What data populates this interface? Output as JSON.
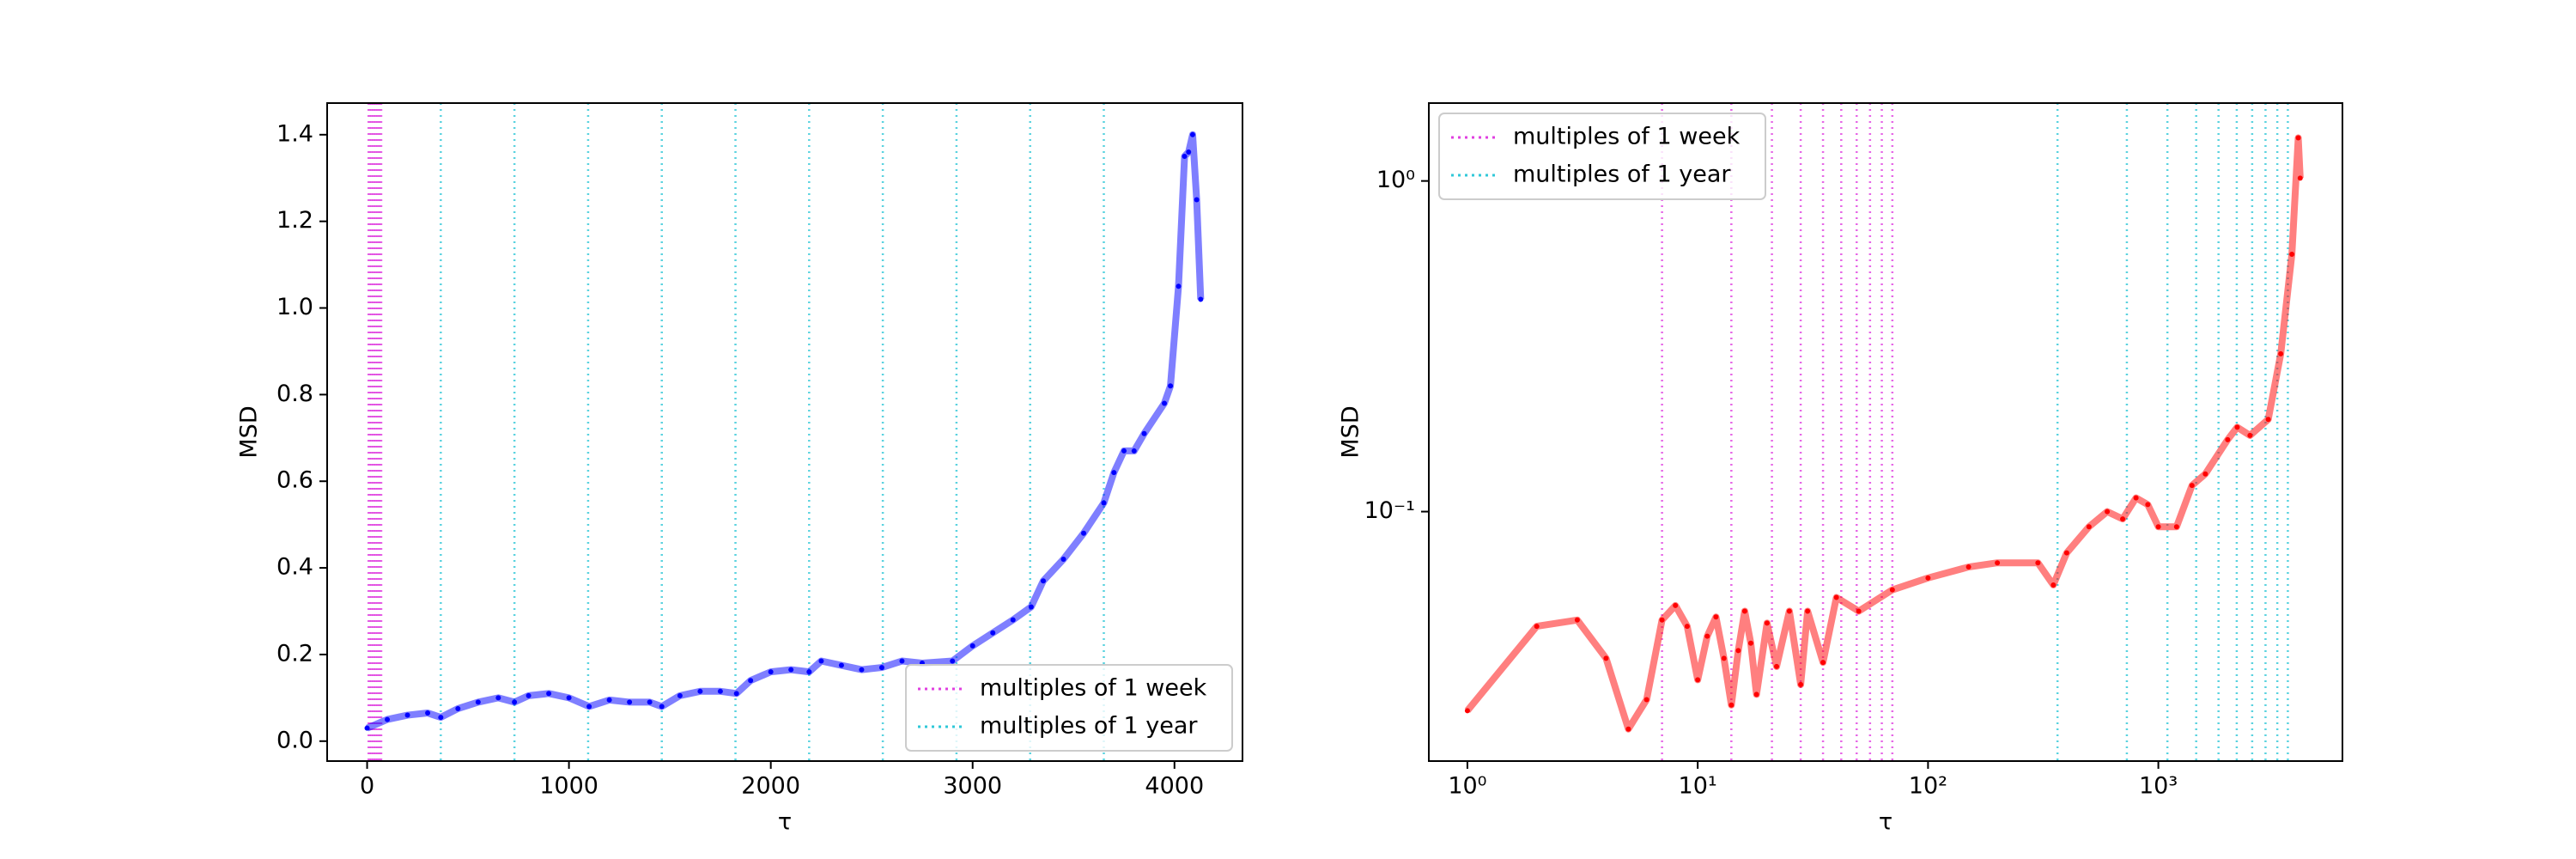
{
  "chart_data": [
    {
      "type": "line",
      "xlabel": "τ",
      "ylabel": "MSD",
      "xscale": "linear",
      "yscale": "linear",
      "xlim": [
        -198,
        4337
      ],
      "ylim": [
        -0.046,
        1.473
      ],
      "xticks": [
        0,
        1000,
        2000,
        3000,
        4000
      ],
      "yticks": [
        {
          "value": 0,
          "label": "0.0"
        },
        0.2,
        0.4,
        0.6,
        0.8,
        {
          "value": 1,
          "label": "1.0"
        },
        1.2,
        1.4
      ],
      "legend": "lower right",
      "series": [
        {
          "name": "MSD",
          "color": "#0000ff",
          "x": [
            0,
            100,
            200,
            300,
            365,
            450,
            550,
            650,
            730,
            800,
            900,
            1000,
            1100,
            1200,
            1300,
            1400,
            1460,
            1550,
            1650,
            1750,
            1830,
            1900,
            2000,
            2100,
            2190,
            2250,
            2350,
            2450,
            2550,
            2650,
            2750,
            2900,
            3000,
            3100,
            3200,
            3290,
            3350,
            3450,
            3550,
            3650,
            3700,
            3750,
            3800,
            3850,
            3950,
            3980,
            4020,
            4050,
            4070,
            4090,
            4110,
            4130
          ],
          "values": [
            0.03,
            0.05,
            0.06,
            0.065,
            0.055,
            0.075,
            0.09,
            0.1,
            0.09,
            0.105,
            0.11,
            0.1,
            0.08,
            0.095,
            0.09,
            0.09,
            0.08,
            0.105,
            0.115,
            0.115,
            0.11,
            0.14,
            0.16,
            0.165,
            0.16,
            0.185,
            0.175,
            0.165,
            0.17,
            0.185,
            0.18,
            0.185,
            0.22,
            0.25,
            0.28,
            0.31,
            0.37,
            0.42,
            0.48,
            0.55,
            0.62,
            0.67,
            0.67,
            0.71,
            0.78,
            0.82,
            1.05,
            1.35,
            1.36,
            1.4,
            1.25,
            1.02
          ]
        }
      ],
      "vlines": [
        {
          "name": "multiples of 1 week",
          "color": "#e040e0",
          "values": [
            7,
            14,
            21,
            28,
            35,
            42,
            49,
            56,
            63,
            70
          ]
        },
        {
          "name": "multiples of 1 year",
          "color": "#30c8d8",
          "values": [
            365,
            730,
            1095,
            1460,
            1825,
            2190,
            2555,
            2920,
            3285,
            3650
          ]
        }
      ]
    },
    {
      "type": "line",
      "xlabel": "τ",
      "ylabel": "MSD",
      "xscale": "log",
      "yscale": "log",
      "xlim": [
        0.68,
        6300
      ],
      "ylim": [
        0.0176,
        1.72
      ],
      "xticks": [
        {
          "value": 1,
          "label": "10⁰"
        },
        {
          "value": 10,
          "label": "10¹"
        },
        {
          "value": 100,
          "label": "10²"
        },
        {
          "value": 1000,
          "label": "10³"
        }
      ],
      "yticks": [
        {
          "value": 0.1,
          "label": "10⁻¹"
        },
        {
          "value": 1,
          "label": "10⁰"
        }
      ],
      "legend": "upper left",
      "series": [
        {
          "name": "MSD",
          "color": "#ff0000",
          "x": [
            1,
            2,
            3,
            4,
            5,
            6,
            7,
            8,
            9,
            10,
            11,
            12,
            13,
            14,
            15,
            16,
            17,
            18,
            20,
            22,
            25,
            28,
            30,
            35,
            40,
            50,
            70,
            100,
            150,
            200,
            300,
            350,
            400,
            500,
            600,
            700,
            800,
            900,
            1000,
            1200,
            1400,
            1600,
            2000,
            2200,
            2500,
            3000,
            3400,
            3800,
            4050,
            4130
          ],
          "values": [
            0.025,
            0.045,
            0.047,
            0.036,
            0.022,
            0.027,
            0.047,
            0.052,
            0.045,
            0.031,
            0.042,
            0.048,
            0.036,
            0.026,
            0.038,
            0.05,
            0.04,
            0.028,
            0.046,
            0.034,
            0.05,
            0.03,
            0.05,
            0.035,
            0.055,
            0.05,
            0.058,
            0.063,
            0.068,
            0.07,
            0.07,
            0.06,
            0.075,
            0.09,
            0.1,
            0.095,
            0.11,
            0.105,
            0.09,
            0.09,
            0.12,
            0.13,
            0.165,
            0.18,
            0.17,
            0.19,
            0.3,
            0.6,
            1.35,
            1.02
          ]
        }
      ],
      "vlines": [
        {
          "name": "multiples of 1 week",
          "color": "#e040e0",
          "values": [
            7,
            14,
            21,
            28,
            35,
            42,
            49,
            56,
            63,
            70
          ]
        },
        {
          "name": "multiples of 1 year",
          "color": "#30c8d8",
          "values": [
            365,
            730,
            1095,
            1460,
            1825,
            2190,
            2555,
            2920,
            3285,
            3650
          ]
        }
      ]
    }
  ]
}
